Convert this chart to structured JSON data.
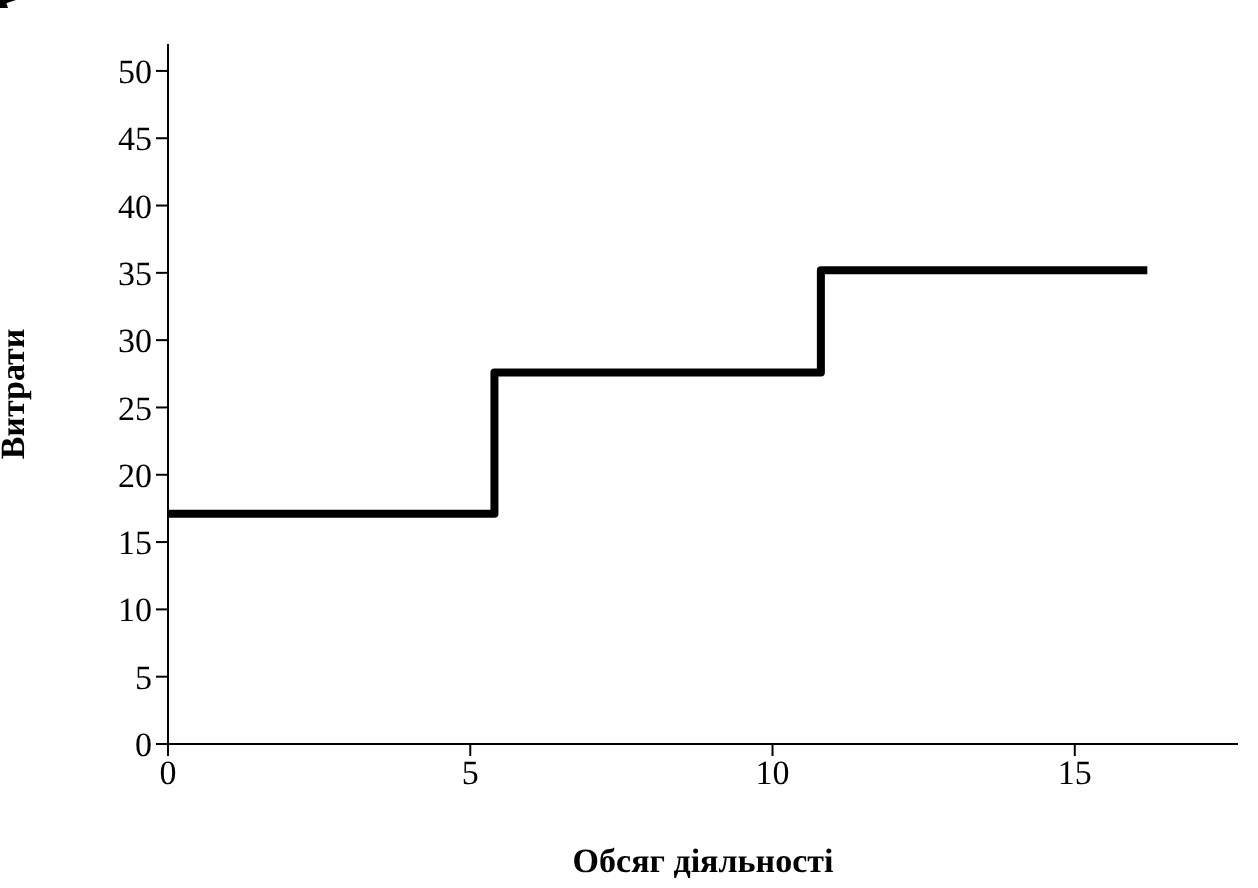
{
  "chart_data": {
    "type": "step",
    "xlabel": "Обсяг діяльності",
    "ylabel": "Витрати",
    "series": [
      {
        "color": "#000000",
        "x": [
          0,
          5.4,
          10.8,
          16.2
        ],
        "values": [
          17.1,
          27.6,
          35.2,
          35.2
        ]
      }
    ],
    "xlim": [
      0,
      17.7
    ],
    "ylim": [
      0,
      52
    ],
    "xticks": [
      0,
      5,
      10,
      15
    ],
    "yticks": [
      0,
      5,
      10,
      15,
      20,
      25,
      30,
      35,
      40,
      45,
      50
    ],
    "grid": false,
    "legend": false,
    "marker": "none",
    "line_style": "solid"
  }
}
